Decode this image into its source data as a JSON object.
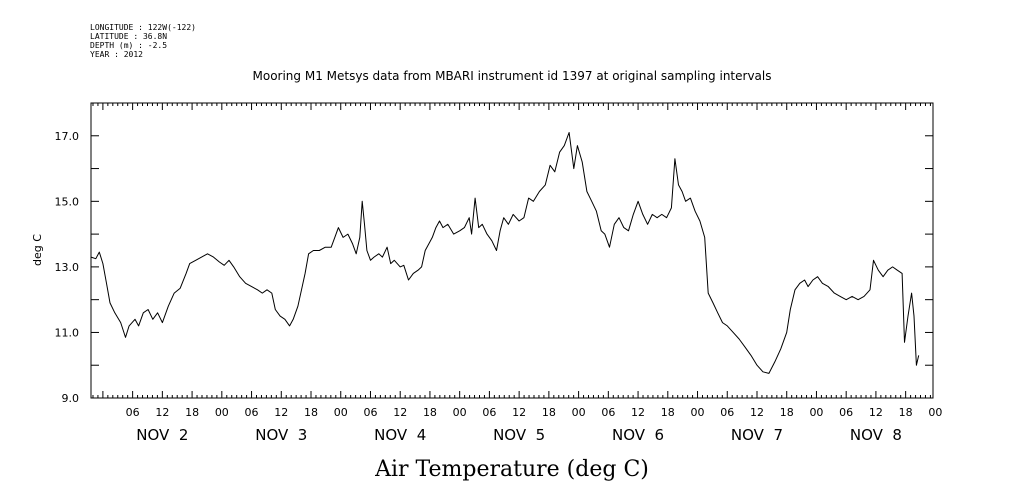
{
  "meta": [
    "LONGITUDE : 122W(-122)",
    "LATITUDE : 36.8N",
    "DEPTH (m) : -2.5",
    "YEAR : 2012"
  ],
  "chart_data": {
    "type": "line",
    "title": "Mooring M1 Metsys data from MBARI instrument id 1397 at original sampling intervals",
    "xlabel": "Air Temperature (deg C)",
    "ylabel": "deg C",
    "xlim": [
      -0.1,
      6.98
    ],
    "ylim": [
      9.0,
      18.0
    ],
    "x_unit": "days from Nov 2 00:00",
    "y_ticks": [
      "9.0",
      "11.0",
      "13.0",
      "15.0",
      "17.0"
    ],
    "x_hour_ticks": [
      "06",
      "12",
      "18",
      "00",
      "06",
      "12",
      "18",
      "00",
      "06",
      "12",
      "18",
      "00",
      "06",
      "12",
      "18",
      "00",
      "06",
      "12",
      "18",
      "00",
      "06",
      "12",
      "18",
      "00",
      "06",
      "12",
      "18",
      "00"
    ],
    "day_labels": [
      "NOV  2",
      "NOV  3",
      "NOV  4",
      "NOV  5",
      "NOV  6",
      "NOV  7",
      "NOV  8"
    ],
    "grid": false,
    "series": [
      {
        "color": "#000000",
        "points": [
          [
            -0.1,
            13.3
          ],
          [
            -0.06,
            13.25
          ],
          [
            -0.03,
            13.45
          ],
          [
            0.0,
            13.1
          ],
          [
            0.03,
            12.5
          ],
          [
            0.06,
            11.9
          ],
          [
            0.1,
            11.6
          ],
          [
            0.15,
            11.3
          ],
          [
            0.19,
            10.85
          ],
          [
            0.22,
            11.2
          ],
          [
            0.27,
            11.4
          ],
          [
            0.3,
            11.2
          ],
          [
            0.34,
            11.6
          ],
          [
            0.38,
            11.7
          ],
          [
            0.42,
            11.4
          ],
          [
            0.46,
            11.6
          ],
          [
            0.5,
            11.3
          ],
          [
            0.55,
            11.8
          ],
          [
            0.6,
            12.2
          ],
          [
            0.65,
            12.35
          ],
          [
            0.7,
            12.8
          ],
          [
            0.73,
            13.1
          ],
          [
            0.78,
            13.2
          ],
          [
            0.83,
            13.3
          ],
          [
            0.88,
            13.4
          ],
          [
            0.93,
            13.3
          ],
          [
            0.98,
            13.15
          ],
          [
            1.02,
            13.05
          ],
          [
            1.06,
            13.2
          ],
          [
            1.1,
            13.0
          ],
          [
            1.15,
            12.7
          ],
          [
            1.2,
            12.5
          ],
          [
            1.25,
            12.4
          ],
          [
            1.3,
            12.3
          ],
          [
            1.34,
            12.2
          ],
          [
            1.38,
            12.3
          ],
          [
            1.42,
            12.2
          ],
          [
            1.45,
            11.7
          ],
          [
            1.49,
            11.5
          ],
          [
            1.53,
            11.4
          ],
          [
            1.57,
            11.2
          ],
          [
            1.6,
            11.4
          ],
          [
            1.64,
            11.8
          ],
          [
            1.67,
            12.3
          ],
          [
            1.7,
            12.8
          ],
          [
            1.73,
            13.4
          ],
          [
            1.77,
            13.5
          ],
          [
            1.82,
            13.5
          ],
          [
            1.87,
            13.6
          ],
          [
            1.92,
            13.6
          ],
          [
            1.95,
            13.9
          ],
          [
            1.98,
            14.2
          ],
          [
            2.02,
            13.9
          ],
          [
            2.06,
            14.0
          ],
          [
            2.1,
            13.7
          ],
          [
            2.13,
            13.4
          ],
          [
            2.16,
            13.9
          ],
          [
            2.18,
            15.0
          ],
          [
            2.2,
            14.3
          ],
          [
            2.22,
            13.5
          ],
          [
            2.25,
            13.2
          ],
          [
            2.28,
            13.3
          ],
          [
            2.32,
            13.4
          ],
          [
            2.35,
            13.3
          ],
          [
            2.39,
            13.6
          ],
          [
            2.42,
            13.1
          ],
          [
            2.45,
            13.2
          ],
          [
            2.5,
            13.0
          ],
          [
            2.53,
            13.05
          ],
          [
            2.57,
            12.6
          ],
          [
            2.61,
            12.8
          ],
          [
            2.65,
            12.9
          ],
          [
            2.68,
            13.0
          ],
          [
            2.71,
            13.5
          ],
          [
            2.74,
            13.7
          ],
          [
            2.77,
            13.9
          ],
          [
            2.8,
            14.2
          ],
          [
            2.83,
            14.4
          ],
          [
            2.86,
            14.2
          ],
          [
            2.9,
            14.3
          ],
          [
            2.95,
            14.0
          ],
          [
            3.0,
            14.1
          ],
          [
            3.04,
            14.2
          ],
          [
            3.08,
            14.5
          ],
          [
            3.1,
            14.0
          ],
          [
            3.13,
            15.1
          ],
          [
            3.16,
            14.2
          ],
          [
            3.19,
            14.3
          ],
          [
            3.23,
            14.0
          ],
          [
            3.27,
            13.8
          ],
          [
            3.31,
            13.5
          ],
          [
            3.34,
            14.1
          ],
          [
            3.37,
            14.5
          ],
          [
            3.41,
            14.3
          ],
          [
            3.45,
            14.6
          ],
          [
            3.5,
            14.4
          ],
          [
            3.54,
            14.5
          ],
          [
            3.58,
            15.1
          ],
          [
            3.62,
            15.0
          ],
          [
            3.67,
            15.3
          ],
          [
            3.72,
            15.5
          ],
          [
            3.76,
            16.1
          ],
          [
            3.8,
            15.9
          ],
          [
            3.84,
            16.5
          ],
          [
            3.88,
            16.7
          ],
          [
            3.92,
            17.1
          ],
          [
            3.96,
            16.0
          ],
          [
            3.99,
            16.7
          ],
          [
            4.03,
            16.2
          ],
          [
            4.07,
            15.3
          ],
          [
            4.11,
            15.0
          ],
          [
            4.15,
            14.7
          ],
          [
            4.19,
            14.1
          ],
          [
            4.22,
            14.0
          ],
          [
            4.26,
            13.6
          ],
          [
            4.3,
            14.3
          ],
          [
            4.34,
            14.5
          ],
          [
            4.38,
            14.2
          ],
          [
            4.42,
            14.1
          ],
          [
            4.46,
            14.6
          ],
          [
            4.5,
            15.0
          ],
          [
            4.54,
            14.6
          ],
          [
            4.58,
            14.3
          ],
          [
            4.62,
            14.6
          ],
          [
            4.66,
            14.5
          ],
          [
            4.7,
            14.6
          ],
          [
            4.74,
            14.5
          ],
          [
            4.78,
            14.8
          ],
          [
            4.81,
            16.3
          ],
          [
            4.84,
            15.5
          ],
          [
            4.87,
            15.3
          ],
          [
            4.9,
            15.0
          ],
          [
            4.94,
            15.1
          ],
          [
            4.98,
            14.7
          ],
          [
            5.02,
            14.4
          ],
          [
            5.06,
            13.9
          ],
          [
            5.09,
            12.2
          ],
          [
            5.13,
            11.9
          ],
          [
            5.17,
            11.6
          ],
          [
            5.21,
            11.3
          ],
          [
            5.25,
            11.2
          ],
          [
            5.3,
            11.0
          ],
          [
            5.35,
            10.8
          ],
          [
            5.4,
            10.55
          ],
          [
            5.45,
            10.3
          ],
          [
            5.5,
            10.0
          ],
          [
            5.55,
            9.8
          ],
          [
            5.6,
            9.75
          ],
          [
            5.65,
            10.1
          ],
          [
            5.7,
            10.5
          ],
          [
            5.75,
            11.0
          ],
          [
            5.78,
            11.7
          ],
          [
            5.82,
            12.3
          ],
          [
            5.86,
            12.5
          ],
          [
            5.9,
            12.6
          ],
          [
            5.93,
            12.4
          ],
          [
            5.97,
            12.6
          ],
          [
            6.01,
            12.7
          ],
          [
            6.05,
            12.5
          ],
          [
            6.1,
            12.4
          ],
          [
            6.15,
            12.2
          ],
          [
            6.2,
            12.1
          ],
          [
            6.25,
            12.0
          ],
          [
            6.3,
            12.1
          ],
          [
            6.35,
            12.0
          ],
          [
            6.4,
            12.1
          ],
          [
            6.45,
            12.3
          ],
          [
            6.48,
            13.2
          ],
          [
            6.52,
            12.9
          ],
          [
            6.56,
            12.7
          ],
          [
            6.6,
            12.9
          ],
          [
            6.64,
            13.0
          ],
          [
            6.68,
            12.9
          ],
          [
            6.72,
            12.8
          ],
          [
            6.74,
            10.7
          ],
          [
            6.77,
            11.5
          ],
          [
            6.8,
            12.2
          ],
          [
            6.82,
            11.5
          ],
          [
            6.84,
            10.0
          ],
          [
            6.86,
            10.3
          ]
        ]
      }
    ]
  }
}
